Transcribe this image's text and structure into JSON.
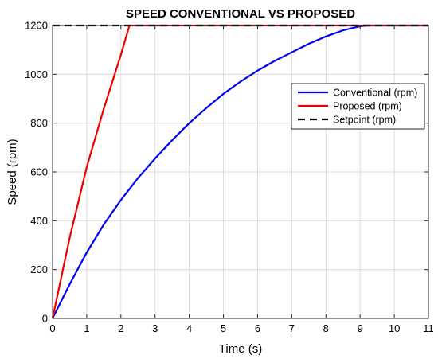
{
  "chart_data": {
    "type": "line",
    "title": "SPEED CONVENTIONAL VS PROPOSED",
    "xlabel": "Time (s)",
    "ylabel": "Speed (rpm)",
    "xlim": [
      0,
      11
    ],
    "ylim": [
      0,
      1200
    ],
    "xticks": [
      0,
      1,
      2,
      3,
      4,
      5,
      6,
      7,
      8,
      9,
      10,
      11
    ],
    "yticks": [
      0,
      200,
      400,
      600,
      800,
      1000,
      1200
    ],
    "grid": true,
    "legend_position": "top-right",
    "series": [
      {
        "name": "Conventional (rpm)",
        "color": "#0000ee",
        "dash": "solid",
        "x": [
          0,
          0.5,
          1,
          1.5,
          2,
          2.5,
          3,
          3.5,
          4,
          4.5,
          5,
          5.5,
          6,
          6.5,
          7,
          7.5,
          8,
          8.5,
          9,
          9.2,
          10,
          11
        ],
        "y": [
          0,
          140,
          270,
          385,
          485,
          575,
          655,
          730,
          800,
          862,
          920,
          970,
          1015,
          1055,
          1090,
          1125,
          1155,
          1180,
          1197,
          1200,
          1200,
          1200
        ]
      },
      {
        "name": "Proposed (rpm)",
        "color": "#ee0000",
        "dash": "solid",
        "x": [
          0,
          0.5,
          1,
          1.5,
          2,
          2.25,
          3,
          5,
          7,
          9,
          11
        ],
        "y": [
          0,
          330,
          620,
          860,
          1080,
          1200,
          1200,
          1200,
          1200,
          1200,
          1200
        ]
      },
      {
        "name": "Setpoint (rpm)",
        "color": "#000000",
        "dash": "dashed",
        "x": [
          0,
          11
        ],
        "y": [
          1200,
          1200
        ]
      }
    ]
  }
}
